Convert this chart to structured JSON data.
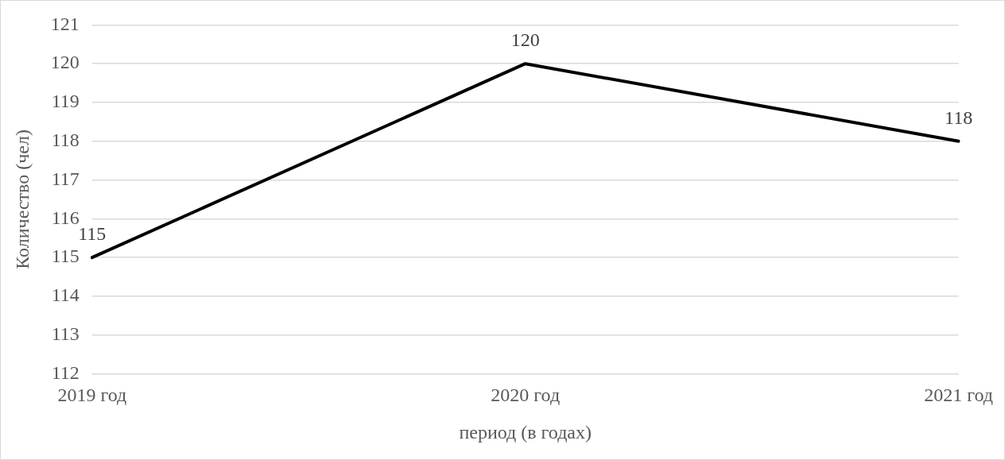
{
  "chart_data": {
    "type": "line",
    "categories": [
      "2019 год",
      "2020 год",
      "2021 год"
    ],
    "series": [
      {
        "color": "#000000",
        "values": [
          115,
          120,
          118
        ]
      }
    ],
    "xlabel": "период (в годах)",
    "ylabel": "Количество (чел)",
    "ylim": [
      112,
      121
    ],
    "yticks": [
      112,
      113,
      114,
      115,
      116,
      117,
      118,
      119,
      120,
      121
    ],
    "grid": "y",
    "legend": false,
    "marker": "none",
    "line_style": "solid",
    "data_labels": true
  }
}
